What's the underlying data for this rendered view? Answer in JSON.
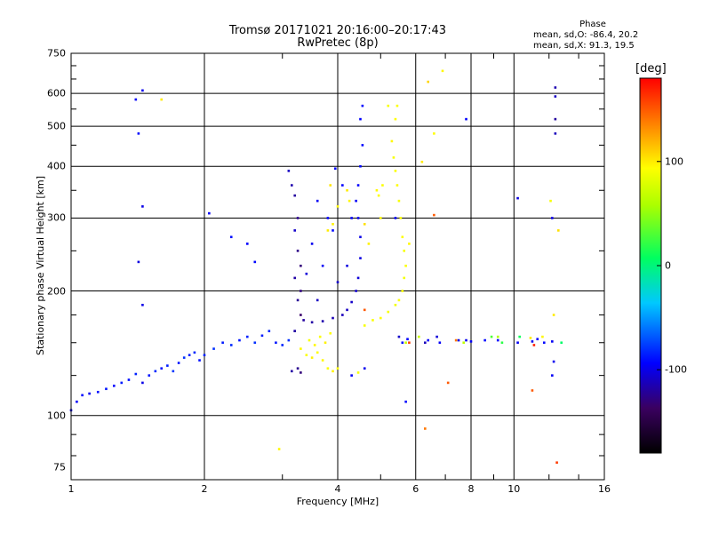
{
  "header": {
    "title_line1": "Tromsø 20171021 20:16:00–20:17:43",
    "title_line2": "RwPretec (8p)",
    "phase_label": "Phase",
    "stat_o": "mean, sd,O: -86.4, 20.2",
    "stat_x": "mean, sd,X:  91.3, 19.5"
  },
  "colorbar": {
    "unit": "[deg]",
    "ticks": [
      {
        "label": "100",
        "value": 100
      },
      {
        "label": "0",
        "value": 0
      },
      {
        "label": "-100",
        "value": -100
      }
    ],
    "range": [
      -180,
      180
    ]
  },
  "chart_data": {
    "type": "scatter",
    "xlabel": "Frequency [MHz]",
    "ylabel": "Stationary phase Virtual Height [km]",
    "x_scale": "log",
    "y_scale": "log",
    "xlim": [
      1,
      16
    ],
    "ylim": [
      70,
      750
    ],
    "x_ticks": [
      1,
      2,
      4,
      6,
      8,
      10,
      16
    ],
    "x_tick_labels": [
      "1",
      "2",
      "4",
      "6",
      "8",
      "10",
      "16"
    ],
    "y_ticks": [
      75,
      100,
      200,
      300,
      400,
      500,
      600,
      750
    ],
    "y_tick_labels": [
      "75",
      "100",
      "200",
      "300",
      "400",
      "500",
      "600",
      "750"
    ],
    "grid": true,
    "colorbar_label": "[deg]",
    "series": [
      {
        "trace": "O-mode",
        "points": [
          [
            1.0,
            103,
            -100
          ],
          [
            1.03,
            108,
            -95
          ],
          [
            1.06,
            112,
            -92
          ],
          [
            1.1,
            113,
            -98
          ],
          [
            1.15,
            114,
            -90
          ],
          [
            1.2,
            116,
            -88
          ],
          [
            1.25,
            118,
            -94
          ],
          [
            1.3,
            120,
            -86
          ],
          [
            1.35,
            122,
            -90
          ],
          [
            1.4,
            126,
            -84
          ],
          [
            1.45,
            120,
            -100
          ],
          [
            1.5,
            125,
            -88
          ],
          [
            1.55,
            128,
            -82
          ],
          [
            1.6,
            130,
            -90
          ],
          [
            1.65,
            132,
            -85
          ],
          [
            1.7,
            128,
            -78
          ],
          [
            1.75,
            134,
            -88
          ],
          [
            1.8,
            138,
            -80
          ],
          [
            1.85,
            140,
            -86
          ],
          [
            1.9,
            142,
            -82
          ],
          [
            1.95,
            136,
            -90
          ],
          [
            2.0,
            140,
            -84
          ],
          [
            2.1,
            145,
            -80
          ],
          [
            2.2,
            150,
            -86
          ],
          [
            2.3,
            148,
            -82
          ],
          [
            2.4,
            152,
            -88
          ],
          [
            2.5,
            155,
            -84
          ],
          [
            2.6,
            150,
            -80
          ],
          [
            2.7,
            156,
            -86
          ],
          [
            2.8,
            160,
            -82
          ],
          [
            2.9,
            150,
            -88
          ],
          [
            3.0,
            148,
            -84
          ],
          [
            3.1,
            152,
            -80
          ],
          [
            3.2,
            160,
            -86
          ],
          [
            1.4,
            580,
            -95
          ],
          [
            1.45,
            610,
            -98
          ],
          [
            1.42,
            480,
            -92
          ],
          [
            1.45,
            320,
            -100
          ],
          [
            1.42,
            235,
            -102
          ],
          [
            1.45,
            185,
            -100
          ],
          [
            2.05,
            308,
            -96
          ],
          [
            2.3,
            270,
            -90
          ],
          [
            2.5,
            260,
            -94
          ],
          [
            2.6,
            235,
            -92
          ],
          [
            3.1,
            390,
            -110
          ],
          [
            3.15,
            360,
            -116
          ],
          [
            3.2,
            340,
            -120
          ],
          [
            3.25,
            300,
            -124
          ],
          [
            3.2,
            280,
            -108
          ],
          [
            3.25,
            250,
            -126
          ],
          [
            3.3,
            230,
            -130
          ],
          [
            3.2,
            215,
            -118
          ],
          [
            3.3,
            200,
            -128
          ],
          [
            3.25,
            190,
            -122
          ],
          [
            3.3,
            175,
            -134
          ],
          [
            3.2,
            160,
            -120
          ],
          [
            3.25,
            130,
            -124
          ],
          [
            3.15,
            128,
            -118
          ],
          [
            3.3,
            127,
            -130
          ],
          [
            3.35,
            170,
            -120
          ],
          [
            3.5,
            168,
            -118
          ],
          [
            3.7,
            169,
            -116
          ],
          [
            3.9,
            172,
            -114
          ],
          [
            4.1,
            175,
            -112
          ],
          [
            4.2,
            180,
            -110
          ],
          [
            4.3,
            188,
            -108
          ],
          [
            4.4,
            200,
            -106
          ],
          [
            4.45,
            215,
            -104
          ],
          [
            4.5,
            240,
            -102
          ],
          [
            4.5,
            270,
            -100
          ],
          [
            4.45,
            300,
            -98
          ],
          [
            4.4,
            330,
            -96
          ],
          [
            4.45,
            360,
            -94
          ],
          [
            4.5,
            400,
            -92
          ],
          [
            4.55,
            450,
            -92
          ],
          [
            4.5,
            520,
            -94
          ],
          [
            4.55,
            560,
            -92
          ],
          [
            3.6,
            330,
            -96
          ],
          [
            3.8,
            300,
            -94
          ],
          [
            3.9,
            280,
            -92
          ],
          [
            3.5,
            260,
            -98
          ],
          [
            3.7,
            230,
            -96
          ],
          [
            3.4,
            220,
            -104
          ],
          [
            3.6,
            190,
            -110
          ],
          [
            4.0,
            210,
            -108
          ],
          [
            4.2,
            230,
            -102
          ],
          [
            4.3,
            300,
            -96
          ],
          [
            4.1,
            360,
            -94
          ],
          [
            3.95,
            395,
            -92
          ],
          [
            4.6,
            130,
            -98
          ],
          [
            4.3,
            125,
            -96
          ],
          [
            5.6,
            150,
            -90
          ],
          [
            5.75,
            153,
            -94
          ],
          [
            5.7,
            108,
            -92
          ],
          [
            6.4,
            152,
            -94
          ],
          [
            6.8,
            150,
            -96
          ],
          [
            7.5,
            152,
            -100
          ],
          [
            7.8,
            152,
            -98
          ],
          [
            8.0,
            151,
            -96
          ],
          [
            8.6,
            152,
            -92
          ],
          [
            9.2,
            152,
            -94
          ],
          [
            10.2,
            150,
            -96
          ],
          [
            11.0,
            151,
            -98
          ],
          [
            11.3,
            153,
            -94
          ],
          [
            11.7,
            150,
            -92
          ],
          [
            12.2,
            151,
            -96
          ],
          [
            10.2,
            335,
            -102
          ],
          [
            12.4,
            590,
            -110
          ],
          [
            12.4,
            520,
            -120
          ],
          [
            12.4,
            480,
            -112
          ],
          [
            12.4,
            620,
            -115
          ],
          [
            12.2,
            300,
            -100
          ],
          [
            12.3,
            135,
            -98
          ],
          [
            12.2,
            125,
            -96
          ],
          [
            7.8,
            520,
            -94
          ],
          [
            6.3,
            150,
            -112
          ],
          [
            5.5,
            155,
            -108
          ],
          [
            5.4,
            300,
            -96
          ],
          [
            6.7,
            155,
            -104
          ]
        ]
      },
      {
        "trace": "X-mode",
        "points": [
          [
            3.3,
            145,
            95
          ],
          [
            3.4,
            140,
            92
          ],
          [
            3.5,
            138,
            98
          ],
          [
            3.6,
            142,
            94
          ],
          [
            3.7,
            136,
            96
          ],
          [
            3.8,
            130,
            92
          ],
          [
            3.9,
            128,
            98
          ],
          [
            4.0,
            130,
            94
          ],
          [
            3.45,
            152,
            90
          ],
          [
            3.55,
            148,
            96
          ],
          [
            3.65,
            155,
            92
          ],
          [
            3.75,
            150,
            98
          ],
          [
            3.85,
            158,
            94
          ],
          [
            4.6,
            165,
            90
          ],
          [
            4.8,
            170,
            92
          ],
          [
            5.0,
            172,
            94
          ],
          [
            5.2,
            178,
            90
          ],
          [
            5.4,
            185,
            88
          ],
          [
            5.5,
            190,
            92
          ],
          [
            5.6,
            200,
            90
          ],
          [
            5.65,
            215,
            88
          ],
          [
            5.7,
            230,
            92
          ],
          [
            5.65,
            250,
            90
          ],
          [
            5.6,
            270,
            94
          ],
          [
            5.55,
            300,
            92
          ],
          [
            5.5,
            330,
            90
          ],
          [
            5.45,
            360,
            94
          ],
          [
            5.4,
            390,
            92
          ],
          [
            5.35,
            420,
            90
          ],
          [
            5.3,
            460,
            96
          ],
          [
            5.4,
            520,
            94
          ],
          [
            5.45,
            560,
            92
          ],
          [
            5.2,
            560,
            90
          ],
          [
            4.9,
            350,
            96
          ],
          [
            4.95,
            340,
            94
          ],
          [
            5.05,
            360,
            92
          ],
          [
            4.2,
            350,
            100
          ],
          [
            4.25,
            330,
            96
          ],
          [
            3.8,
            280,
            100
          ],
          [
            3.9,
            290,
            98
          ],
          [
            4.0,
            320,
            96
          ],
          [
            3.85,
            360,
            102
          ],
          [
            4.6,
            290,
            104
          ],
          [
            4.7,
            260,
            98
          ],
          [
            5.0,
            300,
            96
          ],
          [
            6.6,
            480,
            94
          ],
          [
            6.9,
            680,
            96
          ],
          [
            6.4,
            640,
            108
          ],
          [
            6.2,
            410,
            100
          ],
          [
            5.8,
            260,
            96
          ],
          [
            5.7,
            150,
            70
          ],
          [
            6.1,
            155,
            72
          ],
          [
            7.7,
            150,
            66
          ],
          [
            9.2,
            155,
            60
          ],
          [
            10.9,
            154,
            100
          ],
          [
            11.6,
            155,
            96
          ],
          [
            12.6,
            280,
            104
          ],
          [
            12.1,
            330,
            90
          ],
          [
            12.3,
            175,
            100
          ],
          [
            2.95,
            83,
            96
          ],
          [
            1.6,
            580,
            100
          ],
          [
            4.45,
            127,
            90
          ],
          [
            4.6,
            180,
            150
          ],
          [
            5.8,
            150,
            160
          ],
          [
            6.3,
            93,
            140
          ],
          [
            6.6,
            305,
            150
          ],
          [
            7.1,
            120,
            150
          ],
          [
            7.4,
            152,
            140
          ],
          [
            9.4,
            150,
            20
          ],
          [
            10.3,
            155,
            10
          ],
          [
            12.5,
            77,
            160
          ],
          [
            11.0,
            115,
            150
          ],
          [
            11.1,
            148,
            170
          ],
          [
            8.9,
            155,
            30
          ],
          [
            12.8,
            150,
            5
          ]
        ]
      }
    ]
  }
}
